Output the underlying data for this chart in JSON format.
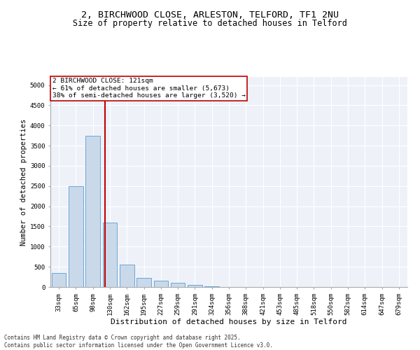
{
  "title_line1": "2, BIRCHWOOD CLOSE, ARLESTON, TELFORD, TF1 2NU",
  "title_line2": "Size of property relative to detached houses in Telford",
  "xlabel": "Distribution of detached houses by size in Telford",
  "ylabel": "Number of detached properties",
  "categories": [
    "33sqm",
    "65sqm",
    "98sqm",
    "130sqm",
    "162sqm",
    "195sqm",
    "227sqm",
    "259sqm",
    "291sqm",
    "324sqm",
    "356sqm",
    "388sqm",
    "421sqm",
    "453sqm",
    "485sqm",
    "518sqm",
    "550sqm",
    "582sqm",
    "614sqm",
    "647sqm",
    "679sqm"
  ],
  "values": [
    350,
    2500,
    3750,
    1600,
    560,
    220,
    150,
    100,
    60,
    15,
    5,
    2,
    1,
    0,
    0,
    0,
    0,
    0,
    0,
    0,
    0
  ],
  "bar_color": "#c9d9ea",
  "bar_edge_color": "#5b9bd5",
  "vline_color": "#c00000",
  "annotation_line1": "2 BIRCHWOOD CLOSE: 121sqm",
  "annotation_line2": "← 61% of detached houses are smaller (5,673)",
  "annotation_line3": "38% of semi-detached houses are larger (3,520) →",
  "annotation_box_color": "#c00000",
  "annotation_box_facecolor": "white",
  "ylim": [
    0,
    5200
  ],
  "yticks": [
    0,
    500,
    1000,
    1500,
    2000,
    2500,
    3000,
    3500,
    4000,
    4500,
    5000
  ],
  "background_color": "#eef2f8",
  "footer_line1": "Contains HM Land Registry data © Crown copyright and database right 2025.",
  "footer_line2": "Contains public sector information licensed under the Open Government Licence v3.0.",
  "title_fontsize": 9.5,
  "subtitle_fontsize": 8.5,
  "tick_fontsize": 6.5,
  "xlabel_fontsize": 8,
  "ylabel_fontsize": 7.5,
  "annotation_fontsize": 6.8,
  "footer_fontsize": 5.5
}
